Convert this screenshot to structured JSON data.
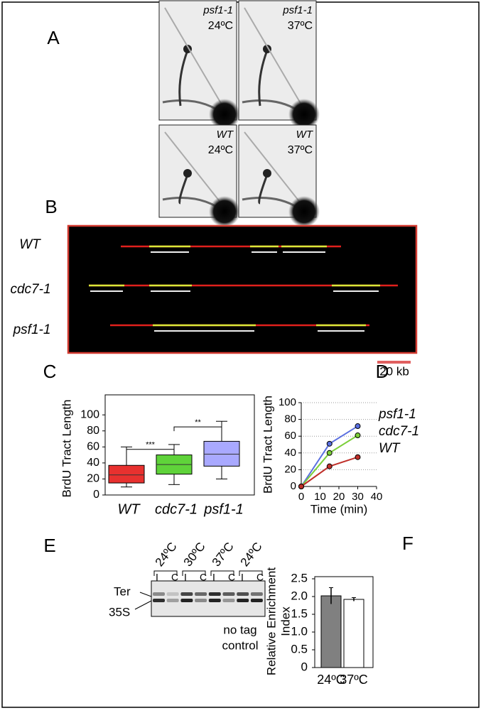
{
  "figure": {
    "panel_letters": [
      "A",
      "B",
      "C",
      "D",
      "E",
      "F"
    ],
    "gels": [
      {
        "strain": "psf1-1",
        "temp": "24ºC"
      },
      {
        "strain": "psf1-1",
        "temp": "37ºC"
      },
      {
        "strain": "WT",
        "temp": "24ºC"
      },
      {
        "strain": "WT",
        "temp": "37ºC"
      }
    ],
    "fiber_labels": [
      "WT",
      "cdc7-1",
      "psf1-1"
    ],
    "scale_bar": "20 kb",
    "blot": {
      "temps": [
        "24ºC",
        "30ºC",
        "37ºC",
        "24ºC"
      ],
      "lanes": [
        "I",
        "C",
        "I",
        "C",
        "I",
        "C",
        "I",
        "C"
      ],
      "bands": [
        "Ter",
        "35S"
      ],
      "note": [
        "no tag",
        "control"
      ]
    }
  },
  "chart_data": [
    {
      "type": "box",
      "ylabel": "BrdU Tract Length",
      "categories": [
        "WT",
        "cdc7-1",
        "psf1-1"
      ],
      "colors": [
        "#e8312f",
        "#5fd33a",
        "#a9a9ff"
      ],
      "stats": [
        {
          "min": 10,
          "q1": 15,
          "median": 25,
          "q3": 37,
          "max": 60
        },
        {
          "min": 13,
          "q1": 26,
          "median": 38,
          "q3": 50,
          "max": 63
        },
        {
          "min": 20,
          "q1": 36,
          "median": 51,
          "q3": 67,
          "max": 92
        }
      ],
      "annotations": [
        {
          "text": "***",
          "y": 57
        },
        {
          "text": "**",
          "y": 85
        }
      ],
      "ylim": [
        0,
        125
      ],
      "yticks": [
        0,
        20,
        40,
        60,
        80,
        100
      ]
    },
    {
      "type": "line",
      "xlabel": "Time (min)",
      "ylabel": "BrdU Tract Length",
      "x": [
        0,
        15,
        30
      ],
      "series": [
        {
          "name": "psf1-1",
          "color": "#5a6fe0",
          "values": [
            0,
            51,
            72
          ]
        },
        {
          "name": "cdc7-1",
          "color": "#7ccf3a",
          "values": [
            0,
            40,
            61
          ]
        },
        {
          "name": "WT",
          "color": "#c0302a",
          "values": [
            0,
            24,
            35
          ]
        }
      ],
      "xlim": [
        0,
        40
      ],
      "xticks": [
        0,
        10,
        20,
        30,
        40
      ],
      "ylim": [
        0,
        100
      ],
      "yticks": [
        0,
        20,
        40,
        60,
        80,
        100
      ],
      "grid": true
    },
    {
      "type": "bar",
      "ylabel": [
        "Relative Enrichment",
        "Index"
      ],
      "categories": [
        "24ºC",
        "37ºC"
      ],
      "values": [
        2.02,
        1.92
      ],
      "errors": [
        0.23,
        0.05
      ],
      "colors": [
        "#808080",
        "#ffffff"
      ],
      "ylim": [
        0,
        2.5
      ],
      "yticks": [
        0,
        0.5,
        {
          "value": 1,
          "label": "1.0"
        },
        1.5,
        {
          "value": 2,
          "label": "2.0"
        },
        2.5
      ]
    }
  ]
}
